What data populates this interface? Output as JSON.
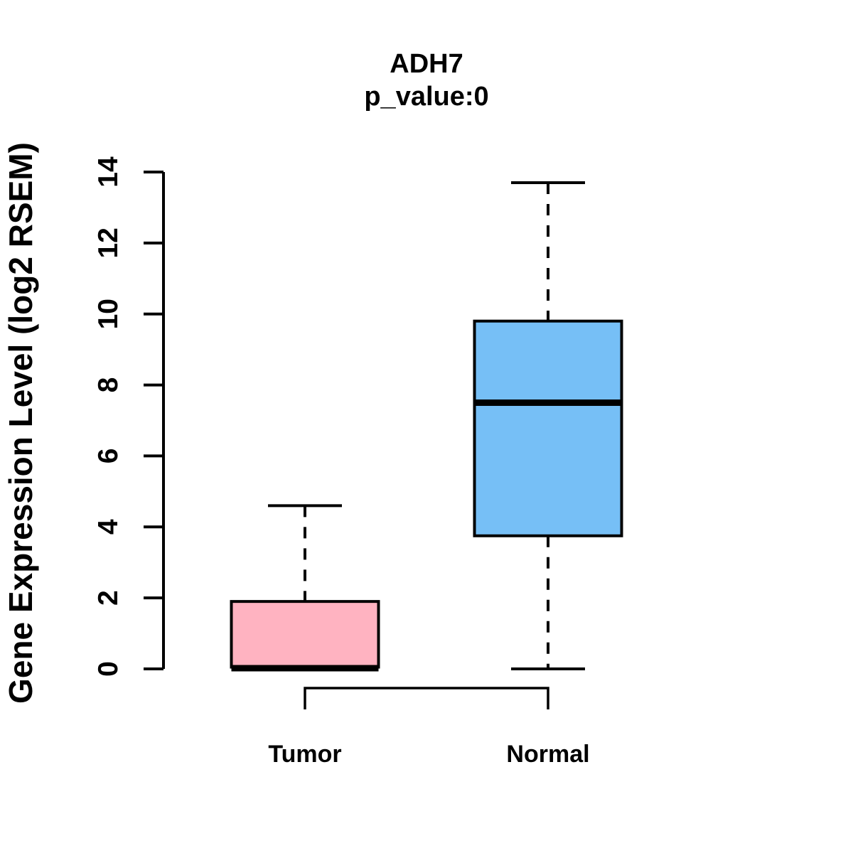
{
  "chart_data": {
    "type": "boxplot",
    "title": "ADH7",
    "subtitle": "p_value:0",
    "ylabel": "Gene Expression Level (log2 RSEM)",
    "xlabel": "",
    "categories": [
      "Tumor",
      "Normal"
    ],
    "yticks": [
      0,
      2,
      4,
      6,
      8,
      10,
      12,
      14
    ],
    "ylim": [
      0,
      14
    ],
    "grid": false,
    "legend": "none",
    "series": [
      {
        "name": "Tumor",
        "box_color": "#FFB3C1",
        "min": 0,
        "q1": 0.05,
        "median": 0.02,
        "q3": 1.9,
        "max": 4.6
      },
      {
        "name": "Normal",
        "box_color": "#76BFF6",
        "min": 0,
        "q1": 3.75,
        "median": 7.5,
        "q3": 9.8,
        "max": 13.7
      }
    ],
    "colors": {
      "tumor_fill": "#FFB3C1",
      "normal_fill": "#76BFF6",
      "line": "#000000",
      "background": "#ffffff"
    }
  }
}
